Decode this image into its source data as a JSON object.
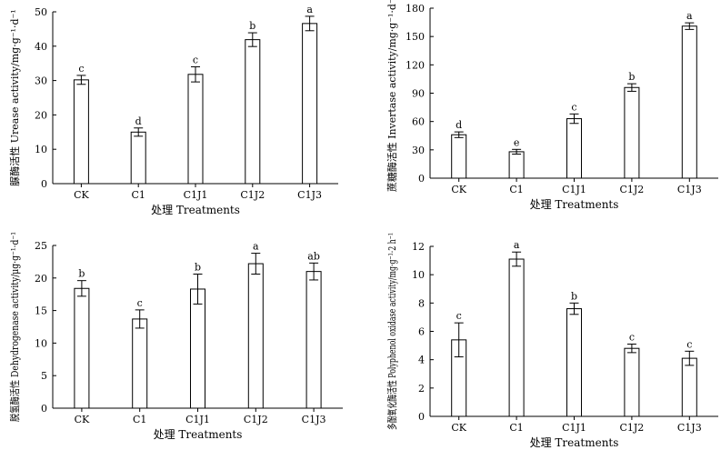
{
  "chart_data": [
    {
      "type": "bar",
      "categories": [
        "CK",
        "C1",
        "C1J1",
        "C1J2",
        "C1J3"
      ],
      "values": [
        30.2,
        15.0,
        31.8,
        41.9,
        46.6
      ],
      "errors": [
        1.3,
        1.2,
        2.2,
        2.0,
        2.1
      ],
      "significance": [
        "c",
        "d",
        "c",
        "b",
        "a"
      ],
      "xlabel": "处理 Treatments",
      "ylabel": "脲酶活性 Urease activity/mg·g⁻¹·d⁻¹",
      "ylim": [
        0,
        50
      ],
      "yticks": [
        0,
        10,
        20,
        30,
        40,
        50
      ]
    },
    {
      "type": "bar",
      "categories": [
        "CK",
        "C1",
        "C1J1",
        "C1J2",
        "C1J3"
      ],
      "values": [
        46,
        28,
        63,
        96,
        161
      ],
      "errors": [
        3,
        2.5,
        5,
        4,
        3.5
      ],
      "significance": [
        "d",
        "e",
        "c",
        "b",
        "a"
      ],
      "xlabel": "处理 Treatments",
      "ylabel": "蔗糖酶活性 Invertase activity/mg·g⁻¹·d⁻¹",
      "ylim": [
        0,
        180
      ],
      "yticks": [
        0,
        30,
        60,
        90,
        120,
        150,
        180
      ]
    },
    {
      "type": "bar",
      "categories": [
        "CK",
        "C1",
        "C1J1",
        "C1J2",
        "C1J3"
      ],
      "values": [
        18.4,
        13.7,
        18.3,
        22.2,
        21.0
      ],
      "errors": [
        1.2,
        1.4,
        2.3,
        1.6,
        1.3
      ],
      "significance": [
        "b",
        "c",
        "b",
        "a",
        "ab"
      ],
      "xlabel": "处理 Treatments",
      "ylabel": "脱氢酶活性 Dehydrogenase activity/μg·g⁻¹·d⁻¹",
      "ylim": [
        0,
        25
      ],
      "yticks": [
        0,
        5,
        10,
        15,
        20,
        25
      ]
    },
    {
      "type": "bar",
      "categories": [
        "CK",
        "C1",
        "C1J1",
        "C1J2",
        "C1J3"
      ],
      "values": [
        5.4,
        11.1,
        7.6,
        4.8,
        4.1
      ],
      "errors": [
        1.2,
        0.5,
        0.4,
        0.3,
        0.5
      ],
      "significance": [
        "c",
        "a",
        "b",
        "c",
        "c"
      ],
      "xlabel": "处理 Treatments",
      "ylabel": "多酚氧化酶活性 Polyphenol oxidase activity/mg·g⁻¹·2 h⁻¹",
      "ylim": [
        0,
        12
      ],
      "yticks": [
        0,
        2,
        4,
        6,
        8,
        10,
        12
      ]
    }
  ]
}
